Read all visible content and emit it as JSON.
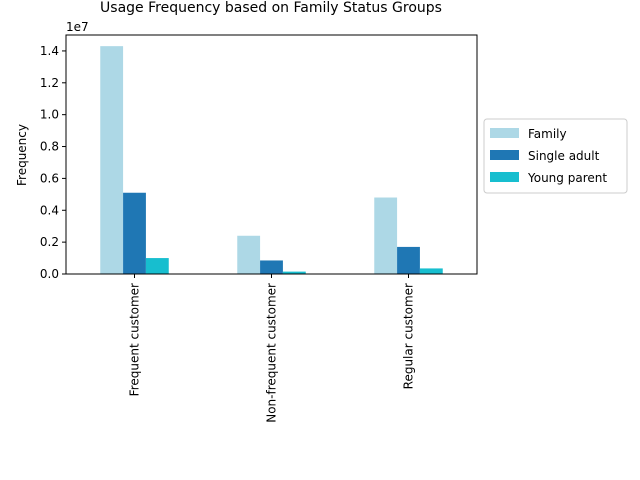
{
  "chart_data": {
    "type": "bar",
    "title": "Usage Frequency based on Family Status Groups",
    "xlabel": "",
    "ylabel": "Frequency",
    "y_scale_label": "1e7",
    "categories": [
      "Frequent customer",
      "Non-frequent customer",
      "Regular customer"
    ],
    "series": [
      {
        "name": "Family",
        "color": "#add8e6",
        "values": [
          14300000,
          2400000,
          4800000
        ]
      },
      {
        "name": "Single adult",
        "color": "#1f77b4",
        "values": [
          5100000,
          850000,
          1700000
        ]
      },
      {
        "name": "Young parent",
        "color": "#17becf",
        "values": [
          1000000,
          150000,
          350000
        ]
      }
    ],
    "ylim": [
      0,
      15000000
    ],
    "yticks": [
      0,
      2000000,
      4000000,
      6000000,
      8000000,
      10000000,
      12000000,
      14000000
    ],
    "ytick_labels": [
      "0.0",
      "0.2",
      "0.4",
      "0.6",
      "0.8",
      "1.0",
      "1.2",
      "1.4"
    ],
    "grid": false,
    "legend_position": "right-center"
  }
}
